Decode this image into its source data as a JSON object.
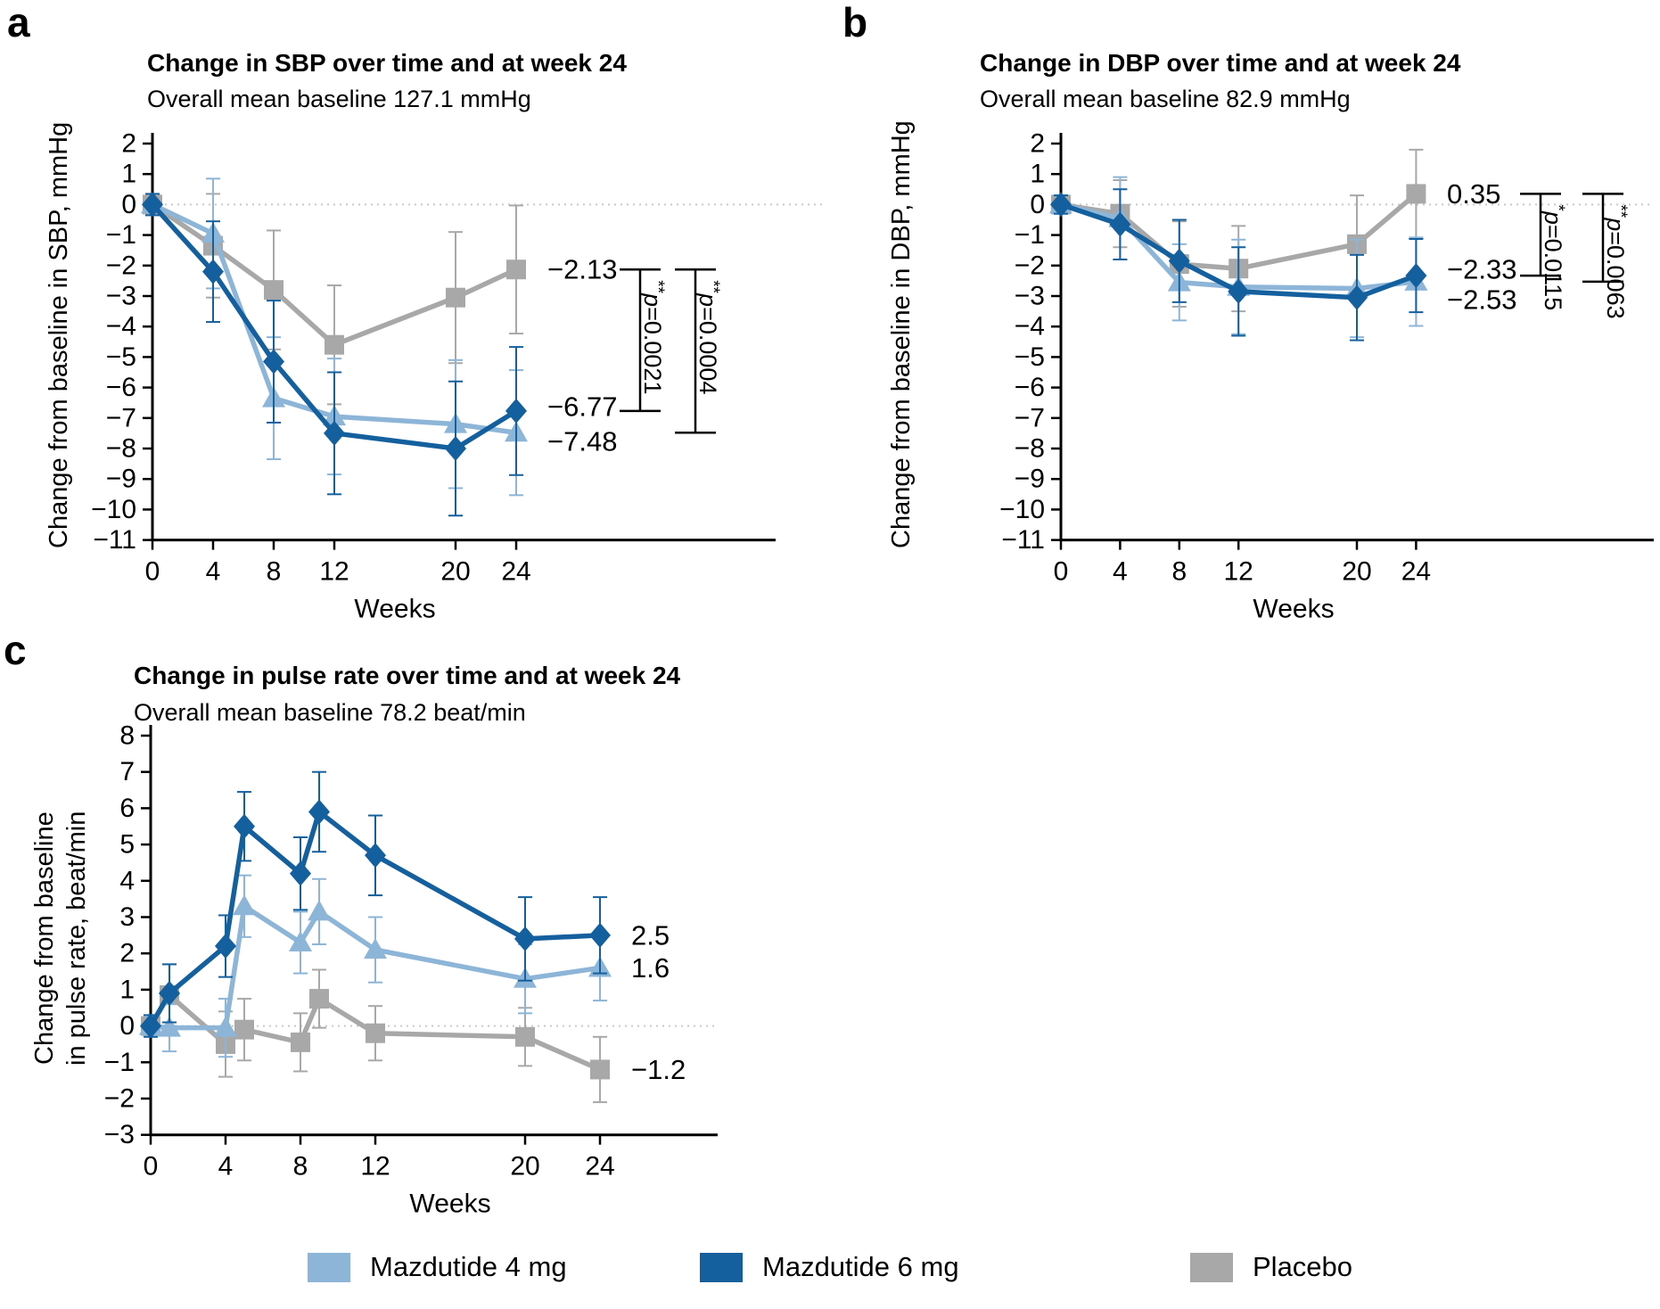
{
  "chart_data": [
    {
      "type": "line",
      "panel": "a",
      "title": "Change in SBP over time and at week 24",
      "subtitle": "Overall mean baseline 127.1 mmHg",
      "ylabel": "Change from baseline in SBP, mmHg",
      "xlabel": "Weeks",
      "x_ticks": [
        0,
        4,
        8,
        12,
        20,
        24
      ],
      "ylim": [
        -11,
        2
      ],
      "ytick_step": 1,
      "zero_line": true,
      "legend_position": "none",
      "series": [
        {
          "name": "Mazdutide 4 mg",
          "marker": "triangle",
          "color": "#8cb5d7",
          "x": [
            0,
            4,
            8,
            12,
            20,
            24
          ],
          "y": [
            0,
            -0.95,
            -6.35,
            -6.95,
            -7.2,
            -7.48
          ],
          "err": [
            0.35,
            1.8,
            2.0,
            1.9,
            2.1,
            2.05
          ],
          "end_label": "−7.48"
        },
        {
          "name": "Mazdutide 6 mg",
          "marker": "diamond",
          "color": "#14609f",
          "x": [
            0,
            4,
            8,
            12,
            20,
            24
          ],
          "y": [
            0,
            -2.2,
            -5.15,
            -7.5,
            -8.0,
            -6.77
          ],
          "err": [
            0.35,
            1.65,
            2.0,
            2.0,
            2.2,
            2.1
          ],
          "end_label": "−6.77"
        },
        {
          "name": "Placebo",
          "marker": "square",
          "color": "#a8a8a8",
          "x": [
            0,
            4,
            8,
            12,
            20,
            24
          ],
          "y": [
            0,
            -1.35,
            -2.8,
            -4.6,
            -3.05,
            -2.13
          ],
          "err": [
            0.3,
            1.7,
            1.95,
            1.95,
            2.15,
            2.1
          ],
          "end_label": "−2.13"
        }
      ],
      "comparisons": [
        {
          "versus": "Placebo vs Mazdutide 6 mg",
          "from": -2.13,
          "to": -6.77,
          "p_label": "p=0.0021",
          "stars": "**"
        },
        {
          "versus": "Placebo vs Mazdutide 4 mg",
          "from": -2.13,
          "to": -7.48,
          "p_label": "p=0.0004",
          "stars": "**"
        }
      ]
    },
    {
      "type": "line",
      "panel": "b",
      "title": "Change in DBP over time and at week 24",
      "subtitle": "Overall mean baseline 82.9 mmHg",
      "ylabel": "Change from baseline in DBP, mmHg",
      "xlabel": "Weeks",
      "x_ticks": [
        0,
        4,
        8,
        12,
        20,
        24
      ],
      "ylim": [
        -11,
        2
      ],
      "ytick_step": 1,
      "zero_line": true,
      "legend_position": "none",
      "series": [
        {
          "name": "Mazdutide 4 mg",
          "marker": "triangle",
          "color": "#8cb5d7",
          "x": [
            0,
            4,
            8,
            12,
            20,
            24
          ],
          "y": [
            0,
            -0.45,
            -2.55,
            -2.7,
            -2.75,
            -2.53
          ],
          "err": [
            0.3,
            1.35,
            1.25,
            1.55,
            1.6,
            1.45
          ],
          "end_label": "−2.53"
        },
        {
          "name": "Mazdutide 6 mg",
          "marker": "diamond",
          "color": "#14609f",
          "x": [
            0,
            4,
            8,
            12,
            20,
            24
          ],
          "y": [
            0,
            -0.65,
            -1.85,
            -2.85,
            -3.05,
            -2.33
          ],
          "err": [
            0.3,
            1.15,
            1.35,
            1.45,
            1.4,
            1.2
          ],
          "end_label": "−2.33"
        },
        {
          "name": "Placebo",
          "marker": "square",
          "color": "#a8a8a8",
          "x": [
            0,
            4,
            8,
            12,
            20,
            24
          ],
          "y": [
            0,
            -0.3,
            -1.95,
            -2.1,
            -1.3,
            0.35
          ],
          "err": [
            0.3,
            1.1,
            1.4,
            1.4,
            1.6,
            1.45
          ],
          "end_label": "0.35"
        }
      ],
      "comparisons": [
        {
          "versus": "Placebo vs Mazdutide 6 mg",
          "from": 0.35,
          "to": -2.33,
          "p_label": "p=0.0115",
          "stars": "*"
        },
        {
          "versus": "Placebo vs Mazdutide 4 mg",
          "from": 0.35,
          "to": -2.53,
          "p_label": "p=0.0063",
          "stars": "**"
        }
      ]
    },
    {
      "type": "line",
      "panel": "c",
      "title": "Change in pulse rate over time and at week 24",
      "subtitle": "Overall mean baseline 78.2 beat/min",
      "ylabel": "Change from baseline in pulse rate, beat/min",
      "ylabel_lines": [
        "Change from baseline",
        "in pulse rate, beat/min"
      ],
      "xlabel": "Weeks",
      "x_ticks": [
        0,
        4,
        8,
        12,
        20,
        24
      ],
      "ylim": [
        -3,
        8
      ],
      "ytick_step": 1,
      "zero_line": true,
      "legend_position": "none",
      "series": [
        {
          "name": "Mazdutide 4 mg",
          "marker": "triangle",
          "color": "#8cb5d7",
          "x": [
            0,
            1,
            4,
            5,
            8,
            9,
            12,
            20,
            24
          ],
          "y": [
            0,
            -0.05,
            -0.05,
            3.3,
            2.3,
            3.15,
            2.1,
            1.3,
            1.6
          ],
          "err": [
            0.25,
            0.65,
            0.8,
            0.85,
            0.85,
            0.9,
            0.9,
            0.95,
            0.9
          ],
          "end_label": "1.6"
        },
        {
          "name": "Mazdutide 6 mg",
          "marker": "diamond",
          "color": "#14609f",
          "x": [
            0,
            1,
            4,
            5,
            8,
            9,
            12,
            20,
            24
          ],
          "y": [
            0,
            0.9,
            2.2,
            5.5,
            4.2,
            5.9,
            4.7,
            2.4,
            2.5
          ],
          "err": [
            0.3,
            0.8,
            0.85,
            0.95,
            1.0,
            1.1,
            1.1,
            1.15,
            1.05
          ],
          "end_label": "2.5"
        },
        {
          "name": "Placebo",
          "marker": "square",
          "color": "#a8a8a8",
          "x": [
            0,
            1,
            4,
            5,
            8,
            9,
            12,
            20,
            24
          ],
          "y": [
            0,
            0.85,
            -0.5,
            -0.1,
            -0.45,
            0.75,
            -0.2,
            -0.3,
            -1.2
          ],
          "err": [
            0.25,
            0.85,
            0.9,
            0.85,
            0.8,
            0.8,
            0.75,
            0.8,
            0.9
          ],
          "end_label": "−1.2"
        }
      ],
      "comparisons": []
    }
  ],
  "legend": {
    "items": [
      {
        "label": "Mazdutide 4 mg",
        "color": "#8cb5d7"
      },
      {
        "label": "Mazdutide 6 mg",
        "color": "#14609f"
      },
      {
        "label": "Placebo",
        "color": "#a8a8a8"
      }
    ]
  }
}
